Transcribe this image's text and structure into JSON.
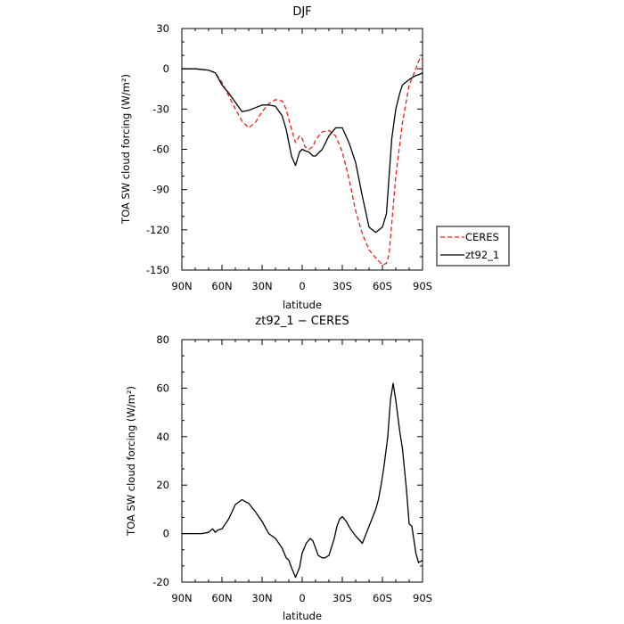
{
  "chart_data": [
    {
      "type": "line",
      "title": "DJF",
      "xlabel": "latitude",
      "ylabel": "TOA SW cloud forcing (W/m²)",
      "x_tick_labels": [
        "90N",
        "60N",
        "30N",
        "0",
        "30S",
        "60S",
        "90S"
      ],
      "x_tick_values": [
        -90,
        -60,
        -30,
        0,
        30,
        60,
        90
      ],
      "xlim": [
        -90,
        90
      ],
      "ylim": [
        -150,
        30
      ],
      "y_ticks": [
        30,
        0,
        -30,
        -60,
        -90,
        -120,
        -150
      ],
      "grid": false,
      "legend_position": "right-bottom, outside plot",
      "series": [
        {
          "name": "CERES",
          "color": "#e8221c",
          "dash": "dashed",
          "x": [
            -90,
            -80,
            -70,
            -65,
            -60,
            -55,
            -50,
            -45,
            -40,
            -35,
            -30,
            -25,
            -20,
            -15,
            -12,
            -10,
            -8,
            -5,
            -2,
            0,
            2,
            5,
            8,
            10,
            15,
            20,
            25,
            30,
            35,
            40,
            45,
            50,
            55,
            60,
            63,
            65,
            67,
            70,
            75,
            80,
            85,
            88,
            90
          ],
          "y": [
            0,
            0,
            -1,
            -3,
            -10,
            -20,
            -30,
            -39,
            -44,
            -40,
            -32,
            -26,
            -23,
            -24,
            -30,
            -38,
            -45,
            -55,
            -50,
            -52,
            -58,
            -60,
            -58,
            -53,
            -47,
            -46,
            -50,
            -62,
            -82,
            -106,
            -123,
            -135,
            -141,
            -146,
            -145,
            -138,
            -115,
            -80,
            -40,
            -12,
            0,
            8,
            7
          ]
        },
        {
          "name": "zt92_1",
          "color": "#000000",
          "dash": "solid",
          "x": [
            -90,
            -80,
            -70,
            -65,
            -60,
            -55,
            -50,
            -45,
            -40,
            -35,
            -30,
            -25,
            -20,
            -15,
            -12,
            -10,
            -8,
            -5,
            -2,
            0,
            2,
            5,
            8,
            10,
            15,
            20,
            25,
            30,
            35,
            40,
            45,
            50,
            55,
            60,
            63,
            65,
            67,
            70,
            73,
            75,
            80,
            85,
            88,
            90
          ],
          "y": [
            0,
            0,
            -1,
            -3,
            -12,
            -18,
            -25,
            -32,
            -31,
            -29,
            -27,
            -27,
            -28,
            -35,
            -45,
            -55,
            -65,
            -72,
            -62,
            -60,
            -61,
            -62,
            -65,
            -65,
            -60,
            -50,
            -44,
            -44,
            -55,
            -70,
            -95,
            -118,
            -122,
            -118,
            -108,
            -80,
            -52,
            -30,
            -18,
            -12,
            -8,
            -5,
            -4,
            -3
          ]
        }
      ]
    },
    {
      "type": "line",
      "title": "zt92_1 − CERES",
      "xlabel": "latitude",
      "ylabel": "TOA SW cloud forcing (W/m²)",
      "x_tick_labels": [
        "90N",
        "60N",
        "30N",
        "0",
        "30S",
        "60S",
        "90S"
      ],
      "x_tick_values": [
        -90,
        -60,
        -30,
        0,
        30,
        60,
        90
      ],
      "xlim": [
        -90,
        90
      ],
      "ylim": [
        -20,
        80
      ],
      "y_ticks": [
        80,
        60,
        40,
        20,
        0,
        -20
      ],
      "grid": false,
      "series": [
        {
          "color": "#000000",
          "dash": "solid",
          "x": [
            -90,
            -80,
            -75,
            -70,
            -67,
            -65,
            -63,
            -60,
            -55,
            -50,
            -45,
            -42,
            -40,
            -35,
            -30,
            -25,
            -20,
            -15,
            -12,
            -10,
            -8,
            -5,
            -2,
            0,
            3,
            6,
            8,
            10,
            12,
            15,
            17,
            20,
            24,
            26,
            28,
            30,
            33,
            36,
            40,
            45,
            50,
            55,
            57,
            59,
            61,
            64,
            66,
            68,
            70,
            73,
            75,
            78,
            80,
            82,
            85,
            87,
            90
          ],
          "y": [
            0,
            0,
            0,
            0.5,
            2,
            0.5,
            1.5,
            2,
            6,
            12,
            14,
            13,
            12.5,
            9,
            5,
            0,
            -2,
            -6,
            -10,
            -11,
            -14,
            -18,
            -14,
            -8,
            -4,
            -2,
            -3,
            -6,
            -9,
            -10,
            -10,
            -9,
            -2,
            3,
            6,
            7,
            5,
            2,
            -1,
            -4,
            3,
            10,
            14,
            20,
            27,
            40,
            55,
            62,
            55,
            42,
            35,
            18,
            4,
            3,
            -8,
            -12,
            -11
          ]
        }
      ]
    }
  ]
}
